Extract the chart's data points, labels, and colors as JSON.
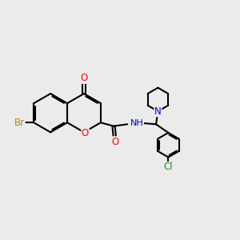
{
  "background_color": "#ebebeb",
  "bond_color": "#000000",
  "atom_colors": {
    "O": "#ff0000",
    "N": "#0000cc",
    "Br": "#b8860b",
    "Cl": "#228b22",
    "H": "#999999"
  },
  "figsize": [
    3.0,
    3.0
  ],
  "dpi": 100
}
